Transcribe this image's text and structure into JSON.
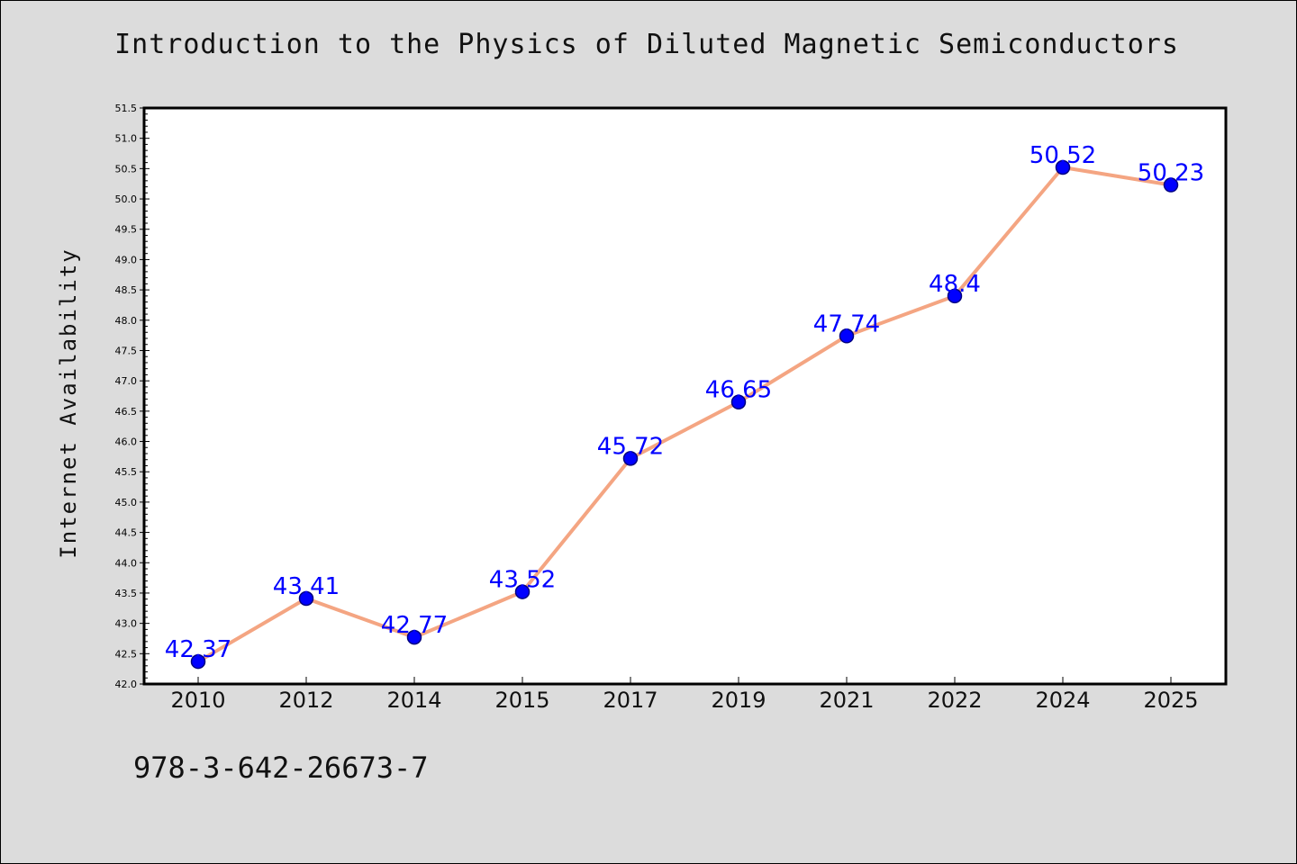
{
  "chart_data": {
    "type": "line",
    "title": "Introduction to the Physics of Diluted Magnetic Semiconductors",
    "xlabel": "",
    "ylabel": "Internet Availability",
    "categories": [
      "2010",
      "2012",
      "2014",
      "2015",
      "2017",
      "2019",
      "2021",
      "2022",
      "2024",
      "2025"
    ],
    "series": [
      {
        "values": [
          42.37,
          43.41,
          42.77,
          43.52,
          45.72,
          46.65,
          47.74,
          48.4,
          50.52,
          50.23
        ],
        "data_labels": [
          "42.37",
          "43.41",
          "42.77",
          "43.52",
          "45.72",
          "46.65",
          "47.74",
          "48.4",
          "50.52",
          "50.23"
        ]
      }
    ],
    "ylim": [
      42.0,
      51.5
    ],
    "y_ticks": [
      "42.0",
      "42.5",
      "43.0",
      "43.5",
      "44.0",
      "44.5",
      "45.0",
      "45.5",
      "46.0",
      "46.5",
      "47.0",
      "47.5",
      "48.0",
      "48.5",
      "49.0",
      "49.5",
      "50.0",
      "50.5",
      "51.0",
      "51.5"
    ],
    "grid": false,
    "legend": "none",
    "colors": {
      "line": "#f4a582",
      "marker_fill": "#0000ff",
      "marker_edge": "#000080",
      "data_label": "#0000ff",
      "plot_background": "#ffffff",
      "figure_background": "#dcdcdc"
    }
  },
  "footer": {
    "isbn": "978-3-642-26673-7"
  }
}
